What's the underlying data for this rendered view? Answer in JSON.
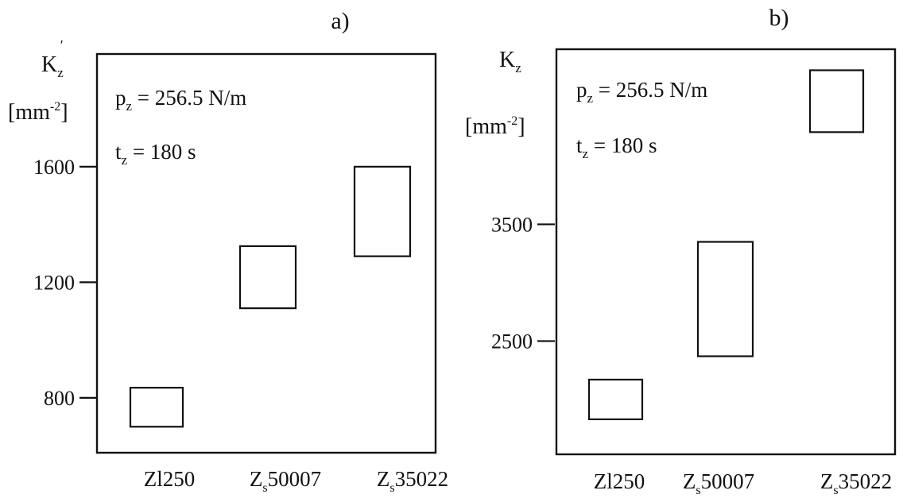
{
  "chart_data": [
    {
      "type": "bar",
      "panel_label": "a)",
      "ylabel": {
        "symbol": "K",
        "sub": "z",
        "prime": "′",
        "unit_pre": "[mm",
        "unit_sup": "-2",
        "unit_post": "]"
      },
      "yticks": [
        "800",
        "1200",
        "1600"
      ],
      "ytick_values": [
        800,
        1200,
        1600
      ],
      "ylim": [
        610,
        1990
      ],
      "annotations": [
        {
          "sym": "p",
          "sub": "z",
          "rest": " = 256.5 N/m"
        },
        {
          "sym": "t",
          "sub": "z",
          "rest": " = 180 s"
        }
      ],
      "categories": [
        {
          "pre": "Zl250",
          "sub": "",
          "post": ""
        },
        {
          "pre": "Z",
          "sub": "s",
          "post": "50007"
        },
        {
          "pre": "Z",
          "sub": "s",
          "post": "35022"
        }
      ],
      "ranges": [
        {
          "low": 700,
          "high": 835
        },
        {
          "low": 1110,
          "high": 1325
        },
        {
          "low": 1290,
          "high": 1600
        }
      ]
    },
    {
      "type": "bar",
      "panel_label": "b)",
      "ylabel": {
        "symbol": "K",
        "sub": "z",
        "prime": "",
        "unit_pre": "[mm",
        "unit_sup": "-2",
        "unit_post": "]"
      },
      "yticks": [
        "2500",
        "3500"
      ],
      "ytick_values": [
        2500,
        3500
      ],
      "ylim": [
        1530,
        5000
      ],
      "annotations": [
        {
          "sym": "p",
          "sub": "z",
          "rest": " = 256.5 N/m"
        },
        {
          "sym": "t",
          "sub": "z",
          "rest": " = 180 s"
        }
      ],
      "categories": [
        {
          "pre": "Zl250",
          "sub": "",
          "post": ""
        },
        {
          "pre": "Z",
          "sub": "s",
          "post": "50007"
        },
        {
          "pre": "Z",
          "sub": "s",
          "post": "35022"
        }
      ],
      "ranges": [
        {
          "low": 1830,
          "high": 2170
        },
        {
          "low": 2370,
          "high": 3350
        },
        {
          "low": 4290,
          "high": 4820
        }
      ]
    }
  ]
}
